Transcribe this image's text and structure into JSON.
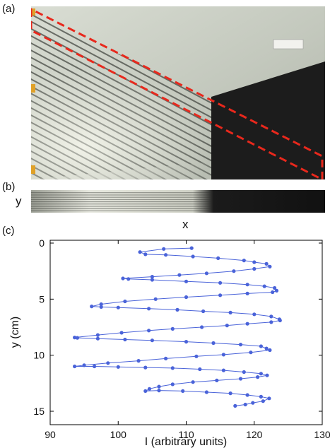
{
  "panel_labels": {
    "a": "(a)",
    "b": "(b)",
    "c": "(c)"
  },
  "strip_axes": {
    "y": "y",
    "x": "x"
  },
  "colors": {
    "series": "#4a63d9",
    "highlight_box": "#e8281c",
    "dark_surface": "#1c1c1c",
    "light_surface": "#c9cfc3"
  },
  "chart_data": {
    "type": "line",
    "xlabel": "I (arbitrary units)",
    "ylabel": "y (cm)",
    "xlim": [
      90,
      130
    ],
    "ylim": [
      0,
      15
    ],
    "y_inverted": true,
    "xticks": [
      90,
      100,
      110,
      120,
      130
    ],
    "yticks": [
      0,
      5,
      10,
      15
    ],
    "grid": false,
    "markers": true,
    "points": [
      [
        110.8,
        0.45
      ],
      [
        106.7,
        0.52
      ],
      [
        103.2,
        0.8
      ],
      [
        104.0,
        1.0
      ],
      [
        107.0,
        1.05
      ],
      [
        111.0,
        1.2
      ],
      [
        114.7,
        1.35
      ],
      [
        118.5,
        1.55
      ],
      [
        120.0,
        1.7
      ],
      [
        121.8,
        1.85
      ],
      [
        122.3,
        2.1
      ],
      [
        120.0,
        2.3
      ],
      [
        117.0,
        2.5
      ],
      [
        113.0,
        2.7
      ],
      [
        109.0,
        2.85
      ],
      [
        105.0,
        3.0
      ],
      [
        100.7,
        3.15
      ],
      [
        101.5,
        3.2
      ],
      [
        105.0,
        3.28
      ],
      [
        110.0,
        3.42
      ],
      [
        115.0,
        3.55
      ],
      [
        119.0,
        3.7
      ],
      [
        121.5,
        3.85
      ],
      [
        123.0,
        4.0
      ],
      [
        123.3,
        4.25
      ],
      [
        122.7,
        4.38
      ],
      [
        119.0,
        4.5
      ],
      [
        115.0,
        4.65
      ],
      [
        110.0,
        4.82
      ],
      [
        105.5,
        5.0
      ],
      [
        101.0,
        5.2
      ],
      [
        97.5,
        5.45
      ],
      [
        96.1,
        5.65
      ],
      [
        97.5,
        5.7
      ],
      [
        100.0,
        5.75
      ],
      [
        104.5,
        5.85
      ],
      [
        108.7,
        5.95
      ],
      [
        112.5,
        6.08
      ],
      [
        116.5,
        6.2
      ],
      [
        120.0,
        6.35
      ],
      [
        122.5,
        6.55
      ],
      [
        123.7,
        6.8
      ],
      [
        123.8,
        6.9
      ],
      [
        122.5,
        7.05
      ],
      [
        119.0,
        7.2
      ],
      [
        116.0,
        7.35
      ],
      [
        112.3,
        7.5
      ],
      [
        108.0,
        7.65
      ],
      [
        104.5,
        7.8
      ],
      [
        100.5,
        8.0
      ],
      [
        97.0,
        8.2
      ],
      [
        93.6,
        8.42
      ],
      [
        94.0,
        8.45
      ],
      [
        97.0,
        8.52
      ],
      [
        101.0,
        8.6
      ],
      [
        105.0,
        8.68
      ],
      [
        110.0,
        8.8
      ],
      [
        114.0,
        8.92
      ],
      [
        118.0,
        9.05
      ],
      [
        121.0,
        9.2
      ],
      [
        121.8,
        9.4
      ],
      [
        122.3,
        9.55
      ],
      [
        119.5,
        9.75
      ],
      [
        115.5,
        9.95
      ],
      [
        111.5,
        10.1
      ],
      [
        107.0,
        10.3
      ],
      [
        103.0,
        10.5
      ],
      [
        98.5,
        10.7
      ],
      [
        95.0,
        10.9
      ],
      [
        93.6,
        11.0
      ],
      [
        96.5,
        11.0
      ],
      [
        100.0,
        11.05
      ],
      [
        104.0,
        11.1
      ],
      [
        108.0,
        11.15
      ],
      [
        112.0,
        11.25
      ],
      [
        115.5,
        11.35
      ],
      [
        118.5,
        11.5
      ],
      [
        121.0,
        11.65
      ],
      [
        121.9,
        11.8
      ],
      [
        120.5,
        11.95
      ],
      [
        118.0,
        12.1
      ],
      [
        114.5,
        12.25
      ],
      [
        111.0,
        12.4
      ],
      [
        108.0,
        12.6
      ],
      [
        106.0,
        12.8
      ],
      [
        104.6,
        13.0
      ],
      [
        104.0,
        13.2
      ],
      [
        106.0,
        13.15
      ],
      [
        109.5,
        13.2
      ],
      [
        113.0,
        13.3
      ],
      [
        116.5,
        13.4
      ],
      [
        119.0,
        13.55
      ],
      [
        121.0,
        13.7
      ],
      [
        122.2,
        13.85
      ],
      [
        121.3,
        14.1
      ],
      [
        119.8,
        14.25
      ],
      [
        118.7,
        14.4
      ],
      [
        117.2,
        14.52
      ]
    ]
  }
}
